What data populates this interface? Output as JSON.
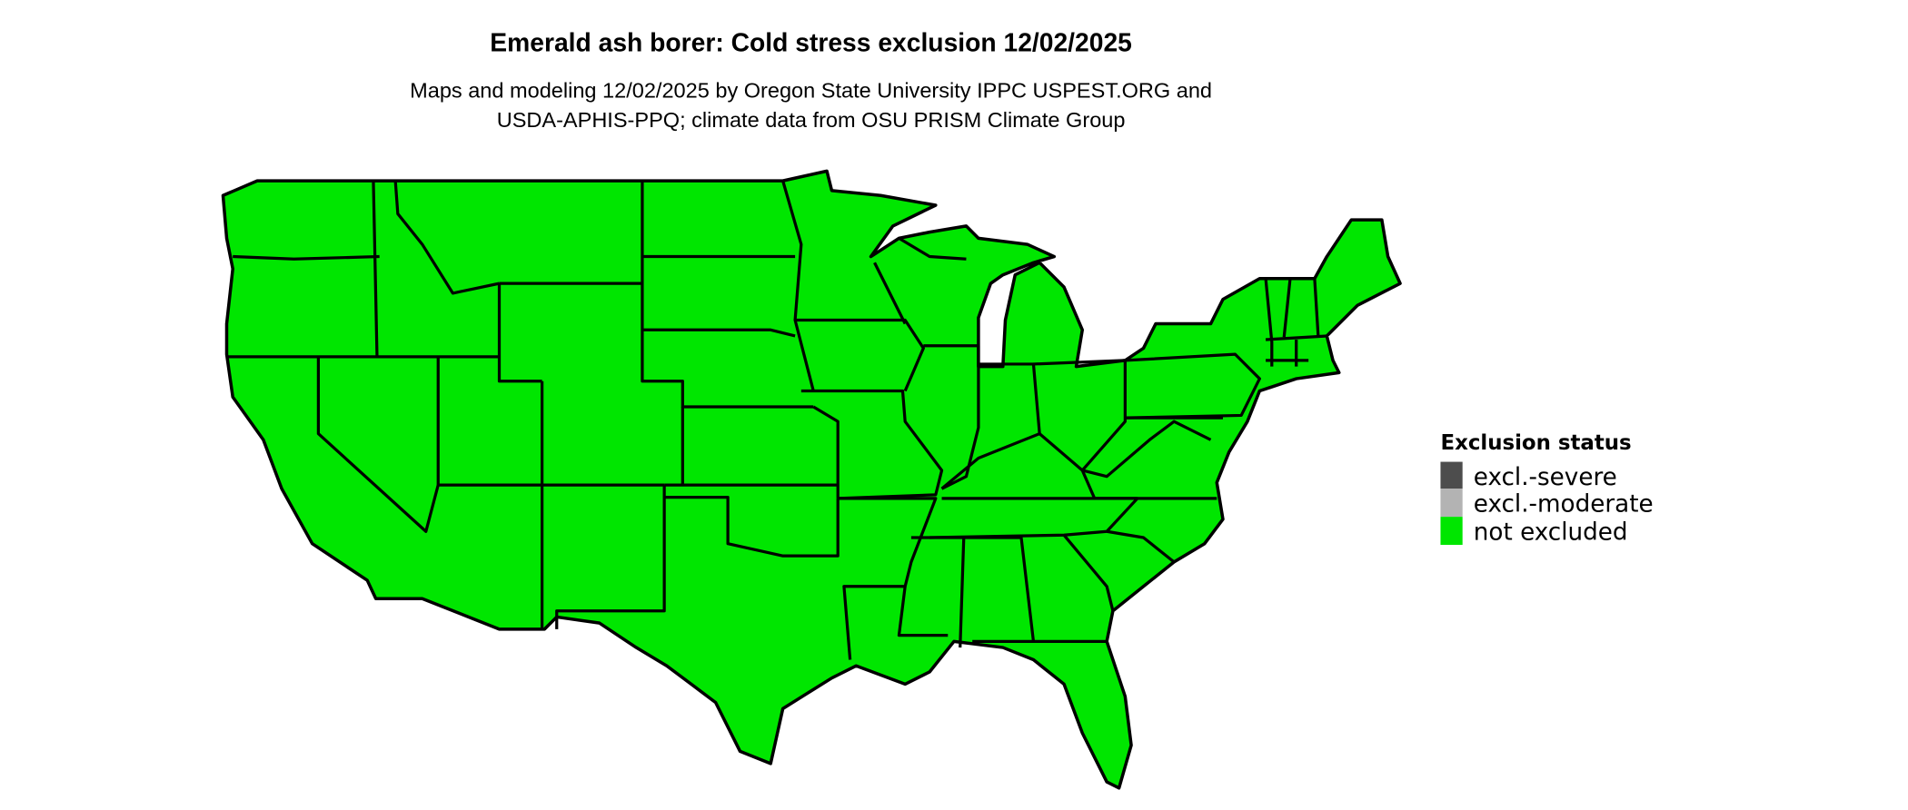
{
  "chart_data": {
    "type": "map",
    "title": "Emerald ash borer: Cold stress exclusion 12/02/2025",
    "subtitle_lines": [
      "Maps and modeling 12/02/2025 by Oregon State University IPPC USPEST.ORG and",
      "USDA-APHIS-PPQ; climate data from OSU PRISM Climate Group"
    ],
    "region": "Contiguous United States",
    "fill_category": "not excluded",
    "legend": {
      "title": "Exclusion status",
      "placement": "right",
      "items": [
        {
          "label": "excl.-severe",
          "color": "#4d4d4d"
        },
        {
          "label": "excl.-moderate",
          "color": "#b3b3b3"
        },
        {
          "label": "not excluded",
          "color": "#00e600"
        }
      ]
    }
  }
}
